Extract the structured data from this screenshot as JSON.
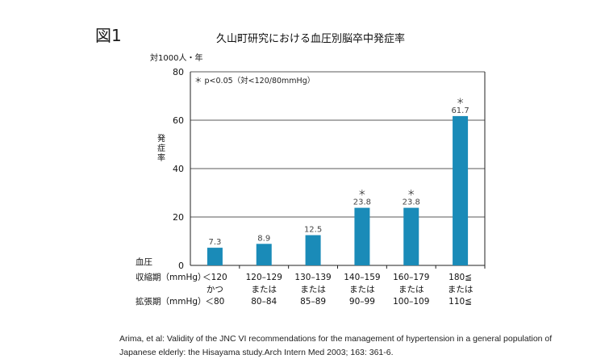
{
  "figure_label": "図1",
  "chart_data": {
    "type": "bar",
    "title": "久山町研究における血圧別脳卒中発症率",
    "unit_label": "対1000人・年",
    "ylabel": "発症率",
    "ylim": [
      0,
      80
    ],
    "yticks": [
      0,
      20,
      40,
      60,
      80
    ],
    "grid": true,
    "note": "＊ p<0.05（対<120/80mmHg）",
    "bar_color": "#1a8bb8",
    "x_row_headers": [
      "血圧",
      "収縮期（mmHg）",
      "拡張期（mmHg）"
    ],
    "categories": [
      {
        "systolic": "＜120",
        "conj": "かつ",
        "diastolic": "＜80"
      },
      {
        "systolic": "120–129",
        "conj": "または",
        "diastolic": "80–84"
      },
      {
        "systolic": "130–139",
        "conj": "または",
        "diastolic": "85–89"
      },
      {
        "systolic": "140–159",
        "conj": "または",
        "diastolic": "90–99"
      },
      {
        "systolic": "160–179",
        "conj": "または",
        "diastolic": "100–109"
      },
      {
        "systolic": "180≦",
        "conj": "または",
        "diastolic": "110≦"
      }
    ],
    "values": [
      7.3,
      8.9,
      12.5,
      23.8,
      23.8,
      61.7
    ],
    "value_labels": [
      "7.3",
      "8.9",
      "12.5",
      "23.8",
      "23.8",
      "61.7"
    ],
    "significant": [
      false,
      false,
      false,
      true,
      true,
      true
    ],
    "sig_marker": "＊"
  },
  "citation": "Arima, et al: Validity of the JNC VI recommendations for the management of hypertension in a general population of Japanese elderly: the Hisayama study.Arch Intern Med 2003; 163: 361-6."
}
